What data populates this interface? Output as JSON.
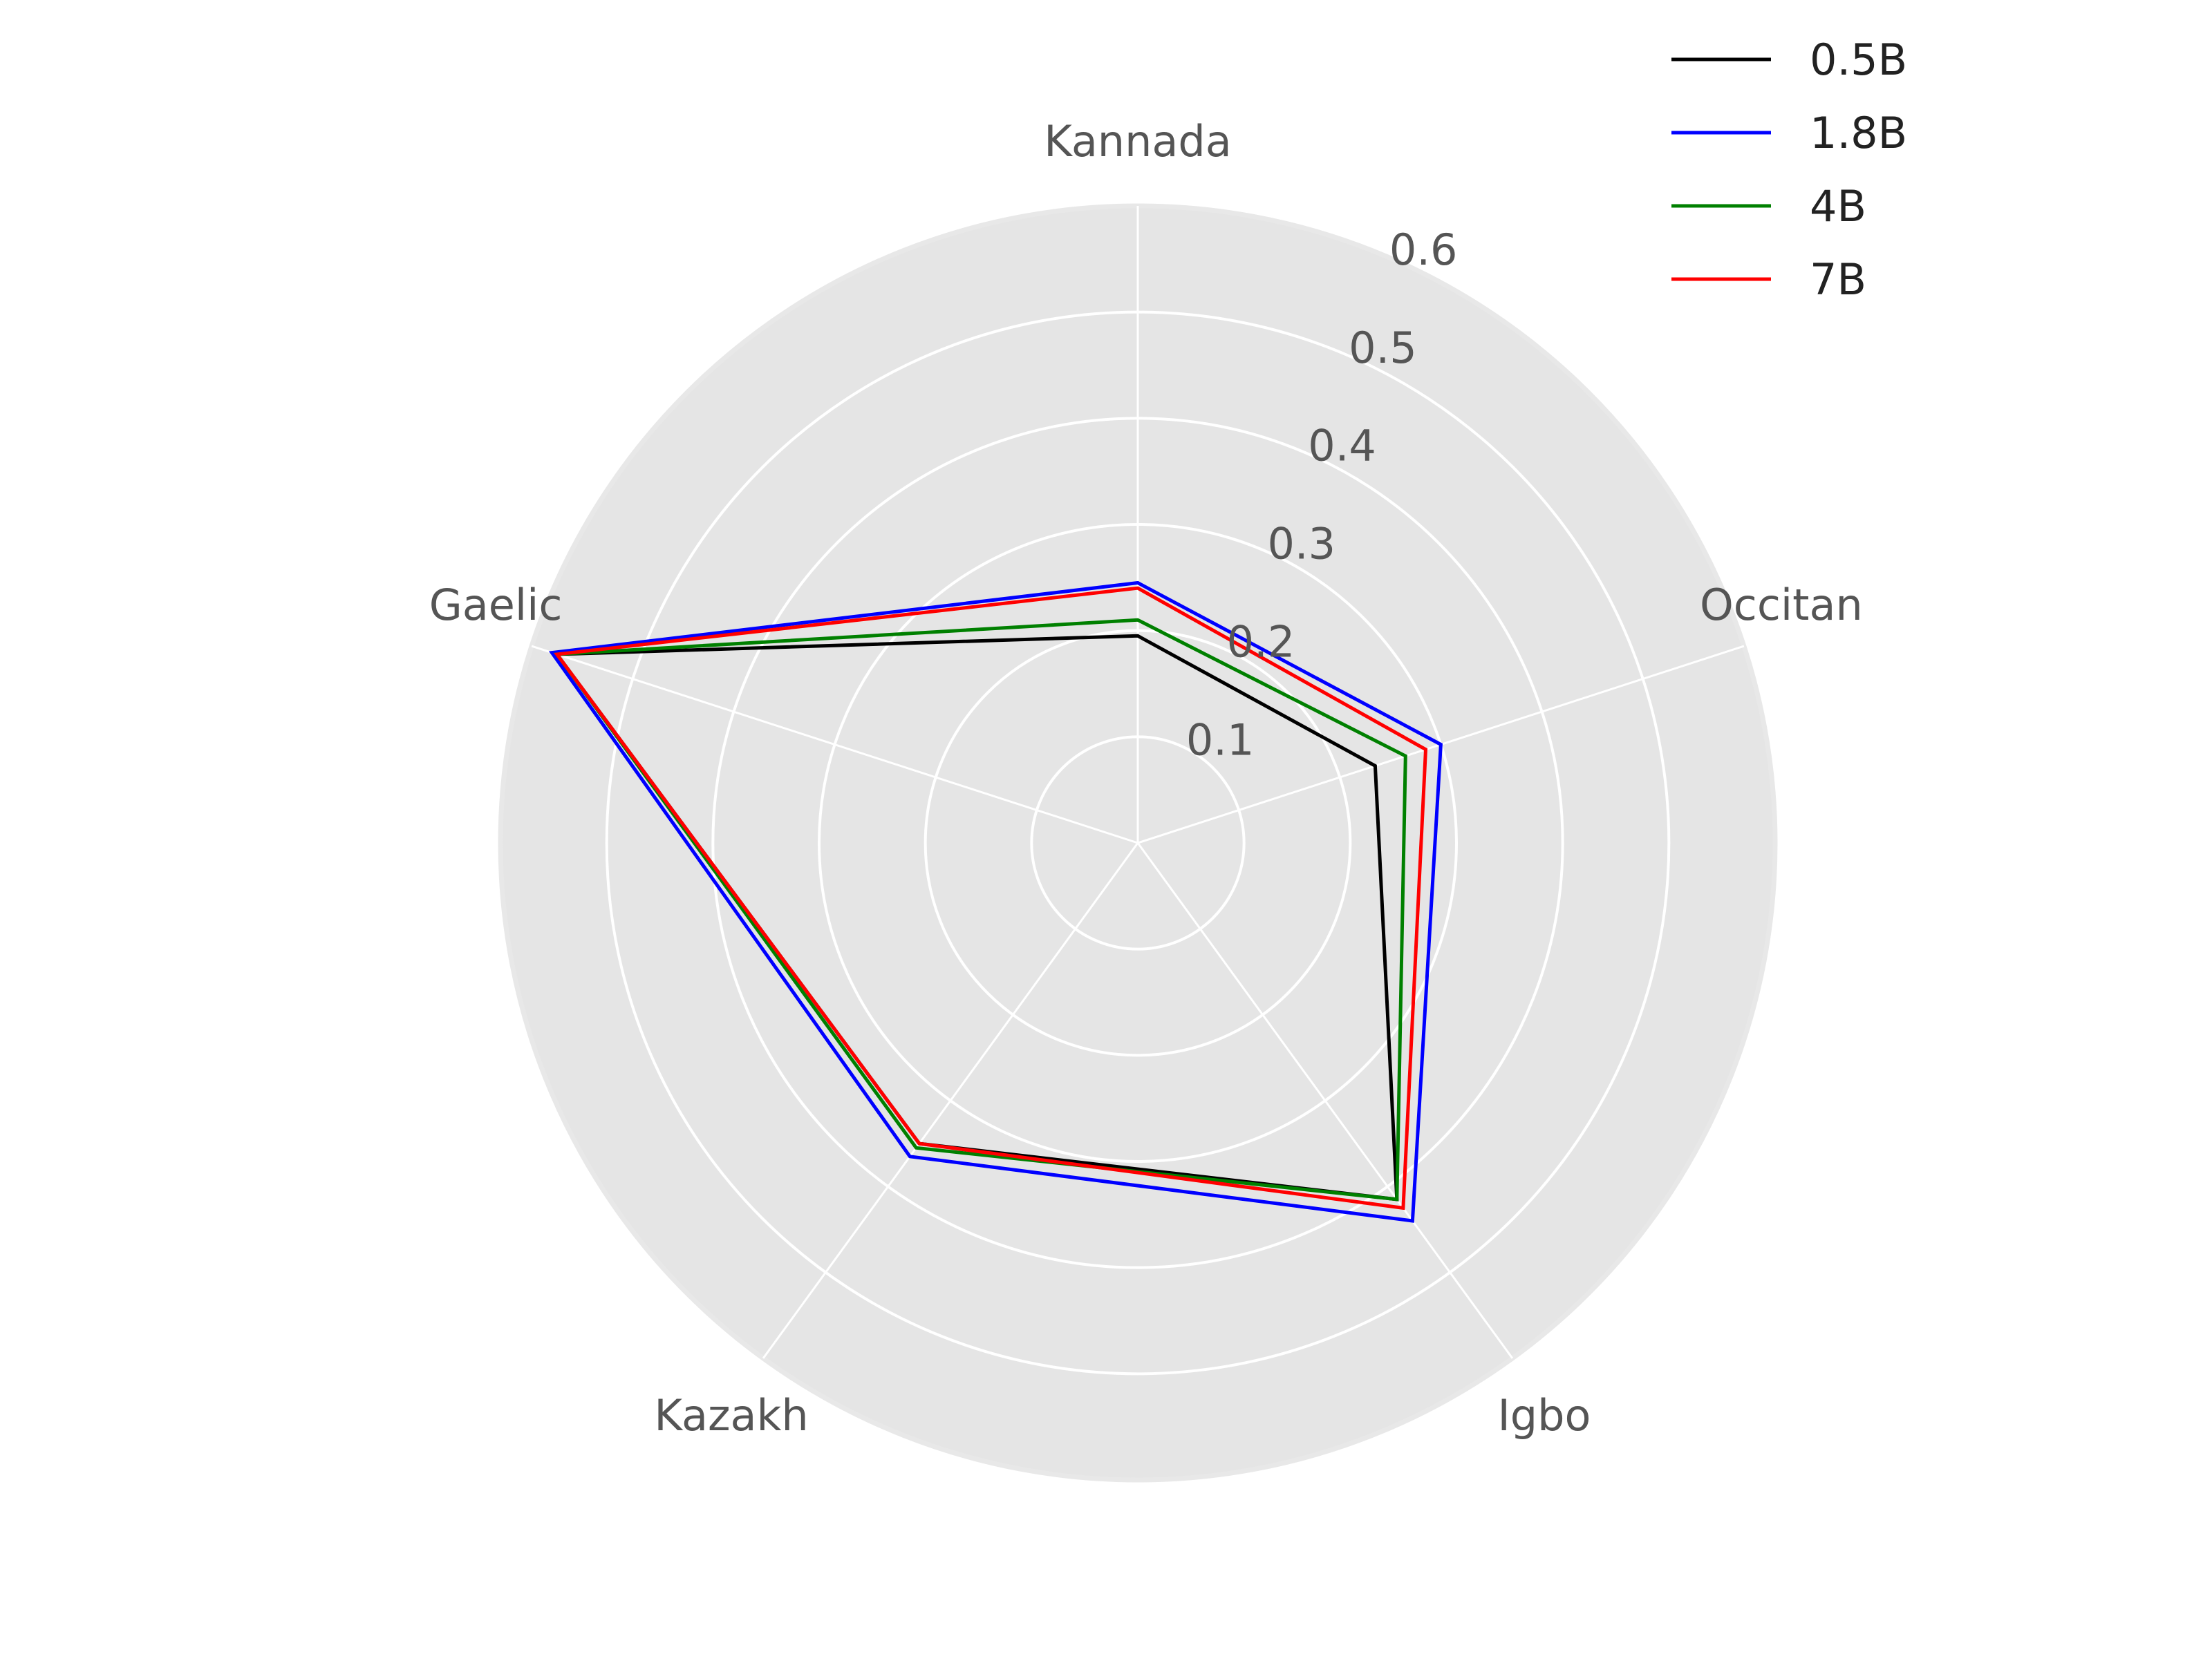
{
  "chart_data": {
    "type": "radar",
    "title": "",
    "categories": [
      "Kannada",
      "Occitan",
      "Igbo",
      "Kazakh",
      "Gaelic"
    ],
    "rlim": [
      0,
      0.6
    ],
    "rticks": [
      0.1,
      0.2,
      0.3,
      0.4,
      0.5,
      0.6
    ],
    "rtick_labels": [
      "0.1",
      "0.2",
      "0.3",
      "0.4",
      "0.5",
      "0.6"
    ],
    "grid": true,
    "legend_position": "top-right",
    "background_color": "#e5e5e5",
    "grid_color": "#ffffff",
    "series": [
      {
        "name": "0.5B",
        "color": "#000000",
        "values": [
          0.195,
          0.235,
          0.415,
          0.35,
          0.575
        ]
      },
      {
        "name": "1.8B",
        "color": "#0000ff",
        "values": [
          0.245,
          0.3,
          0.44,
          0.365,
          0.58
        ]
      },
      {
        "name": "4B",
        "color": "#008000",
        "values": [
          0.21,
          0.265,
          0.415,
          0.355,
          0.575
        ]
      },
      {
        "name": "7B",
        "color": "#ff0000",
        "values": [
          0.24,
          0.285,
          0.425,
          0.35,
          0.575
        ]
      }
    ]
  }
}
